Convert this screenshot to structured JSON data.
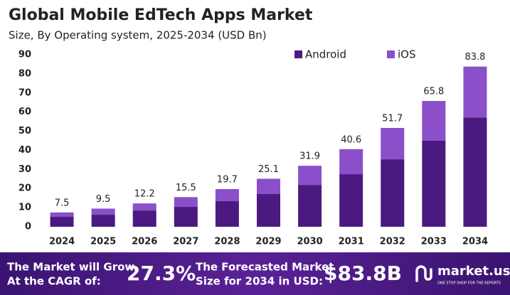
{
  "chart_data": {
    "type": "stacked-bar",
    "title": "Global Mobile EdTech Apps Market",
    "subtitle": "Size, By Operating system, 2025-2034 (USD Bn)",
    "categories": [
      "2024",
      "2025",
      "2026",
      "2027",
      "2028",
      "2029",
      "2030",
      "2031",
      "2032",
      "2033",
      "2034"
    ],
    "series": [
      {
        "name": "Android",
        "color": "#4b1a80",
        "values": [
          5.2,
          6.3,
          8.5,
          10.4,
          13.4,
          17.1,
          21.9,
          27.5,
          35.3,
          45.0,
          57.2
        ]
      },
      {
        "name": "iOS",
        "color": "#8a4fc9",
        "values": [
          2.3,
          3.2,
          3.7,
          5.1,
          6.3,
          8.0,
          10.0,
          13.1,
          16.4,
          20.8,
          26.6
        ]
      }
    ],
    "totals": [
      7.5,
      9.5,
      12.2,
      15.5,
      19.7,
      25.1,
      31.9,
      40.6,
      51.7,
      65.8,
      83.8
    ],
    "ylim": [
      0,
      90
    ],
    "yticks": [
      0,
      10,
      20,
      30,
      40,
      50,
      60,
      70,
      80,
      90
    ],
    "grid": false,
    "legend": "top-right"
  },
  "footer": {
    "cagr_text": [
      "The Market will Grow",
      "At the CAGR of:"
    ],
    "cagr_value": "27.3%",
    "forecast_text": [
      "The Forecasted Market",
      "Size for 2034 in USD:"
    ],
    "forecast_value": "$83.8B",
    "brand": "market.us",
    "tagline": "ONE STOP SHOP FOR THE REPORTS"
  }
}
